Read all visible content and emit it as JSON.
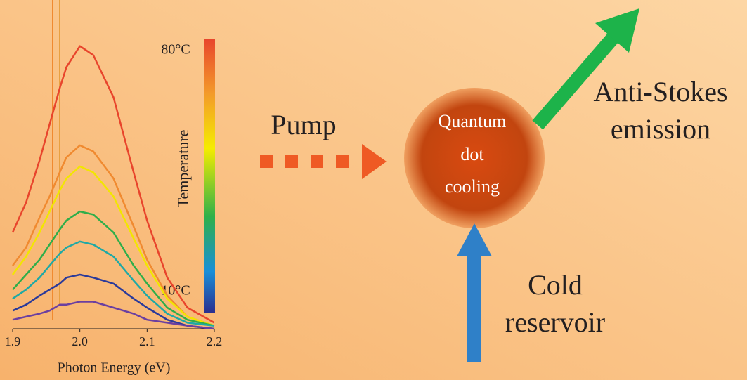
{
  "chart_data": {
    "type": "line",
    "x": [
      1.9,
      1.92,
      1.94,
      1.955,
      1.97,
      1.98,
      2.0,
      2.02,
      2.05,
      2.08,
      2.1,
      2.13,
      2.16,
      2.2
    ],
    "series": [
      {
        "color": "#e8452c",
        "values": [
          32,
          42,
          56,
          68,
          80,
          87,
          94,
          91,
          77,
          52,
          36,
          17,
          7,
          2
        ]
      },
      {
        "color": "#f08a30",
        "values": [
          21,
          27,
          37,
          44,
          52,
          57,
          61,
          59,
          50,
          34,
          23,
          11,
          4,
          1
        ]
      },
      {
        "color": "#f2e600",
        "values": [
          18,
          24,
          32,
          39,
          46,
          50,
          54,
          52,
          44,
          30,
          21,
          10,
          4,
          1
        ]
      },
      {
        "color": "#2fae4a",
        "values": [
          13,
          18,
          23,
          28,
          33,
          36,
          39,
          38,
          32,
          21,
          15,
          7,
          3,
          1
        ]
      },
      {
        "color": "#1fa9a5",
        "values": [
          10,
          13,
          17,
          21,
          25,
          27,
          29,
          28,
          24,
          16,
          11,
          5,
          2,
          1
        ]
      },
      {
        "color": "#2b3a9a",
        "values": [
          6,
          8,
          11,
          13,
          15,
          17,
          18,
          17,
          15,
          10,
          7,
          3,
          1,
          0
        ]
      },
      {
        "color": "#6b3fa0",
        "values": [
          3,
          4,
          5,
          6,
          8,
          8,
          9,
          9,
          7,
          5,
          3,
          2,
          1,
          0
        ]
      }
    ],
    "xlim": [
      1.9,
      2.2
    ],
    "xticks": [
      1.9,
      {
        "value": 2,
        "label": "2.0"
      },
      2.1,
      2.2
    ],
    "ylim": [
      0,
      100
    ],
    "xlabel": "Photon Energy (eV)",
    "colorbar": {
      "label": "Temperature",
      "max_label": "80°C",
      "min_label": "10°C"
    }
  },
  "diagram": {
    "pump": "Pump",
    "dot": [
      "Quantum",
      "dot",
      "cooling"
    ],
    "anti_stokes": [
      "Anti-Stokes",
      "emission"
    ],
    "cold": [
      "Cold",
      "reservoir"
    ]
  }
}
